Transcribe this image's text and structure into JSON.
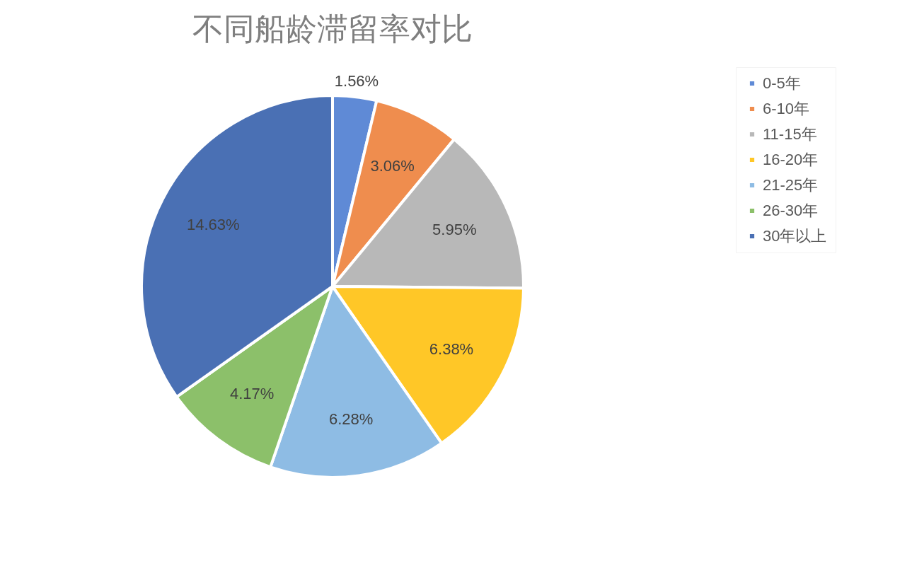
{
  "chart_data": {
    "type": "pie",
    "title": "不同船龄滞留率对比",
    "categories": [
      "0-5年",
      "6-10年",
      "11-15年",
      "16-20年",
      "21-25年",
      "26-30年",
      "30年以上"
    ],
    "values": [
      1.56,
      3.06,
      5.95,
      6.38,
      6.28,
      4.17,
      14.63
    ],
    "value_labels": [
      "1.56%",
      "3.06%",
      "5.95%",
      "6.38%",
      "6.28%",
      "4.17%",
      "14.63%"
    ],
    "colors": [
      "#5f8ad6",
      "#ef8d4e",
      "#b8b8b8",
      "#ffc727",
      "#8ebce4",
      "#8cc06a",
      "#4a70b4"
    ],
    "legend": "right"
  }
}
